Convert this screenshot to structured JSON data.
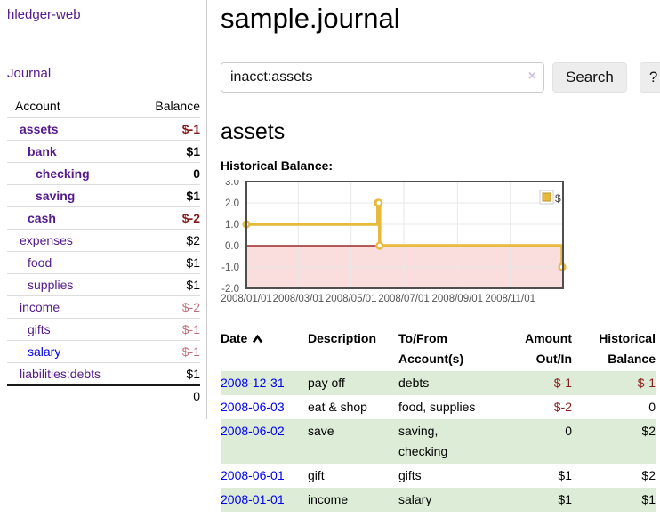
{
  "app": {
    "brand": "hledger-web",
    "nav_journal": "Journal"
  },
  "sidebar": {
    "headers": {
      "account": "Account",
      "balance": "Balance"
    },
    "accounts": [
      {
        "name": "assets",
        "balance": "$-1",
        "indent": 1,
        "bold": true,
        "neg": "strong",
        "blue": false
      },
      {
        "name": "bank",
        "balance": "$1",
        "indent": 2,
        "bold": true,
        "neg": "none",
        "blue": false
      },
      {
        "name": "checking",
        "balance": "0",
        "indent": 3,
        "bold": true,
        "neg": "none",
        "blue": false
      },
      {
        "name": "saving",
        "balance": "$1",
        "indent": 3,
        "bold": true,
        "neg": "none",
        "blue": false
      },
      {
        "name": "cash",
        "balance": "$-2",
        "indent": 2,
        "bold": true,
        "neg": "strong",
        "blue": false
      },
      {
        "name": "expenses",
        "balance": "$2",
        "indent": 1,
        "bold": false,
        "neg": "none",
        "blue": false
      },
      {
        "name": "food",
        "balance": "$1",
        "indent": 2,
        "bold": false,
        "neg": "none",
        "blue": false
      },
      {
        "name": "supplies",
        "balance": "$1",
        "indent": 2,
        "bold": false,
        "neg": "none",
        "blue": false
      },
      {
        "name": "income",
        "balance": "$-2",
        "indent": 1,
        "bold": false,
        "neg": "soft",
        "blue": false
      },
      {
        "name": "gifts",
        "balance": "$-1",
        "indent": 2,
        "bold": false,
        "neg": "soft",
        "blue": false
      },
      {
        "name": "salary",
        "balance": "$-1",
        "indent": 2,
        "bold": false,
        "neg": "soft",
        "blue": true
      },
      {
        "name": "liabilities:debts",
        "balance": "$1",
        "indent": 1,
        "bold": false,
        "neg": "none",
        "blue": false
      }
    ],
    "total": "0"
  },
  "header": {
    "title": "sample.journal"
  },
  "search": {
    "value": "inacct:assets",
    "clear_icon": "×",
    "button_label": "Search",
    "help_label": "?"
  },
  "account_page": {
    "title": "assets",
    "chart_label": "Historical Balance:"
  },
  "chart_data": {
    "type": "line",
    "title": "Historical Balance",
    "series": [
      {
        "name": "$",
        "color": "#e7ba3d",
        "steps": true,
        "points": [
          [
            "2008-01-01",
            1
          ],
          [
            "2008-06-01",
            2
          ],
          [
            "2008-06-02",
            2
          ],
          [
            "2008-06-03",
            0
          ],
          [
            "2008-12-31",
            -1
          ]
        ]
      }
    ],
    "x_ticks": [
      "2008/01/01",
      "2008/03/01",
      "2008/05/01",
      "2008/07/01",
      "2008/09/01",
      "2008/11/01"
    ],
    "y_ticks": [
      "3.0",
      "2.0",
      "1.0",
      "0.0",
      "-1.0",
      "-2.0"
    ],
    "xlim": [
      "2008-01-01",
      "2009-01-01"
    ],
    "ylim": [
      -2,
      3
    ],
    "grid": true,
    "negative_region_color": "#fadddd",
    "zero_line_color": "#8b0000",
    "axis_text_color": "#545454",
    "border_color": "#4f4f4f",
    "legend": {
      "label": "$",
      "position": "top-right"
    }
  },
  "register": {
    "headers": {
      "date": "Date",
      "description": "Description",
      "accounts_line1": "To/From",
      "accounts_line2": "Account(s)",
      "amount_line1": "Amount",
      "amount_line2": "Out/In",
      "balance_line1": "Historical",
      "balance_line2": "Balance"
    },
    "rows": [
      {
        "date": "2008-12-31",
        "description": "pay off",
        "accounts": "debts",
        "amount": "$-1",
        "amount_neg": true,
        "balance": "$-1",
        "balance_neg": true,
        "green": true
      },
      {
        "date": "2008-06-03",
        "description": "eat & shop",
        "accounts": "food, supplies",
        "amount": "$-2",
        "amount_neg": true,
        "balance": "0",
        "balance_neg": false,
        "green": false
      },
      {
        "date": "2008-06-02",
        "description": "save",
        "accounts": "saving, checking",
        "amount": "0",
        "amount_neg": false,
        "balance": "$2",
        "balance_neg": false,
        "green": true
      },
      {
        "date": "2008-06-01",
        "description": "gift",
        "accounts": "gifts",
        "amount": "$1",
        "amount_neg": false,
        "balance": "$2",
        "balance_neg": false,
        "green": false
      },
      {
        "date": "2008-01-01",
        "description": "income",
        "accounts": "salary",
        "amount": "$1",
        "amount_neg": false,
        "balance": "$1",
        "balance_neg": false,
        "green": true
      }
    ]
  }
}
